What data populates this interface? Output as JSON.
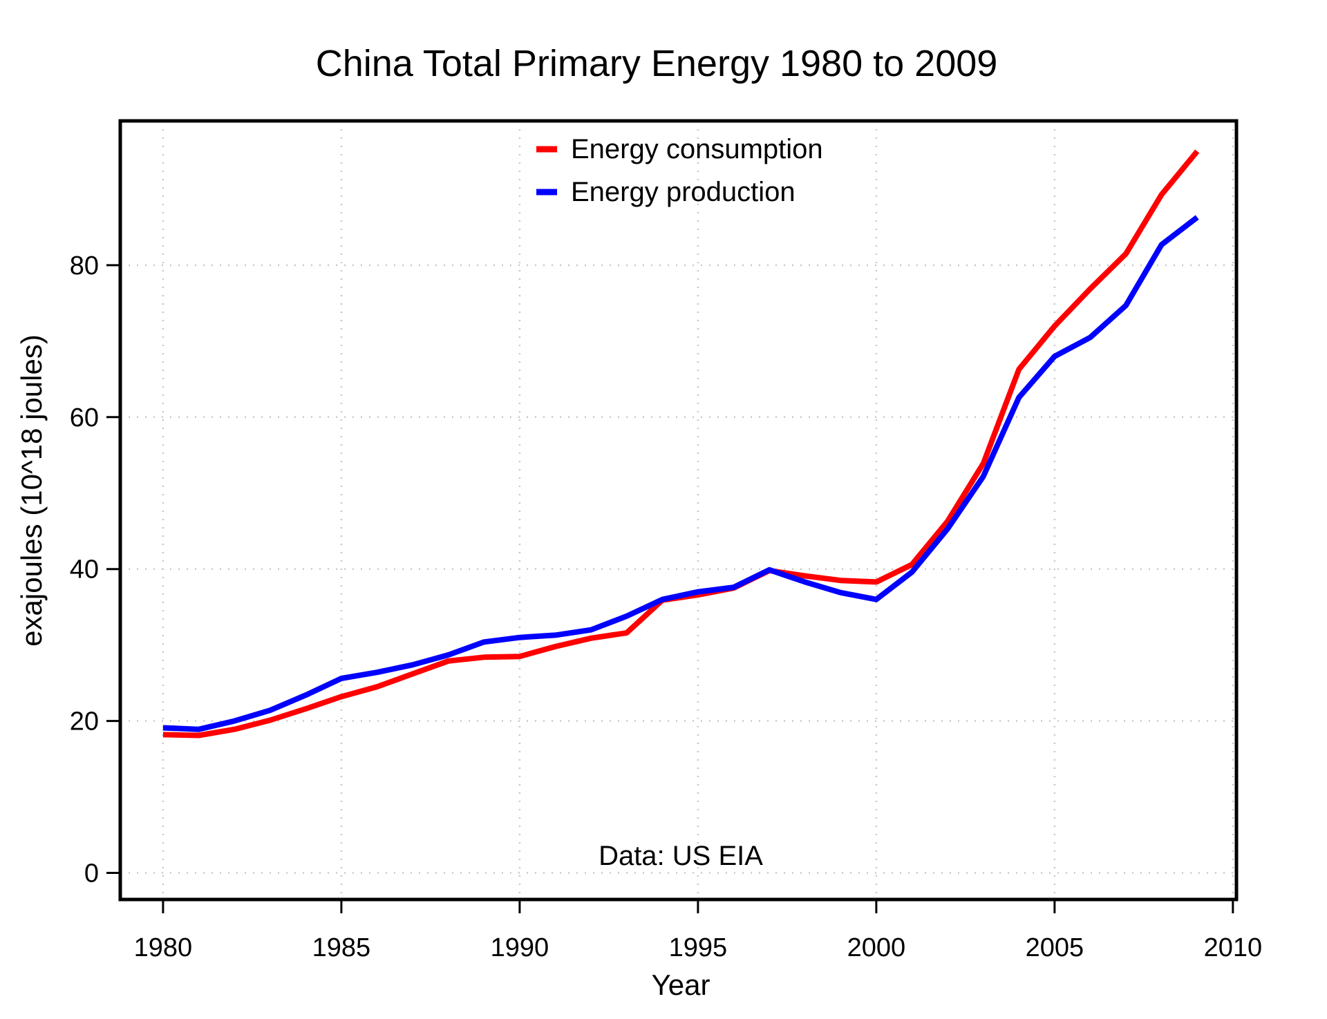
{
  "chart_data": {
    "type": "line",
    "title": "China Total Primary Energy 1980 to 2009",
    "xlabel": "Year",
    "ylabel": "exajoules (10^18 joules)",
    "annotation": "Data: US EIA",
    "xlim": [
      1978.8,
      2010.1
    ],
    "ylim": [
      -3.5,
      99
    ],
    "x_ticks": [
      1980,
      1985,
      1990,
      1995,
      2000,
      2005,
      2010
    ],
    "y_ticks": [
      0,
      20,
      40,
      60,
      80
    ],
    "grid": true,
    "legend_position": "top-center",
    "x": [
      1980,
      1981,
      1982,
      1983,
      1984,
      1985,
      1986,
      1987,
      1988,
      1989,
      1990,
      1991,
      1992,
      1993,
      1994,
      1995,
      1996,
      1997,
      1998,
      1999,
      2000,
      2001,
      2002,
      2003,
      2004,
      2005,
      2006,
      2007,
      2008,
      2009
    ],
    "series": [
      {
        "name": "Energy consumption",
        "color": "#ff0000",
        "values": [
          18.2,
          18.1,
          18.9,
          20.1,
          21.6,
          23.2,
          24.5,
          26.2,
          27.9,
          28.4,
          28.5,
          29.8,
          30.9,
          31.6,
          35.9,
          36.6,
          37.5,
          39.8,
          39.1,
          38.5,
          38.3,
          40.6,
          46.3,
          53.9,
          66.3,
          72.0,
          76.9,
          81.5,
          89.3,
          95.0
        ]
      },
      {
        "name": "Energy production",
        "color": "#0000ff",
        "values": [
          19.1,
          18.9,
          20.0,
          21.4,
          23.4,
          25.6,
          26.4,
          27.4,
          28.7,
          30.4,
          31.0,
          31.3,
          32.0,
          33.8,
          36.0,
          37.0,
          37.6,
          39.9,
          38.3,
          36.9,
          36.0,
          39.6,
          45.3,
          52.2,
          62.6,
          68.0,
          70.5,
          74.7,
          82.7,
          86.3
        ]
      }
    ]
  }
}
